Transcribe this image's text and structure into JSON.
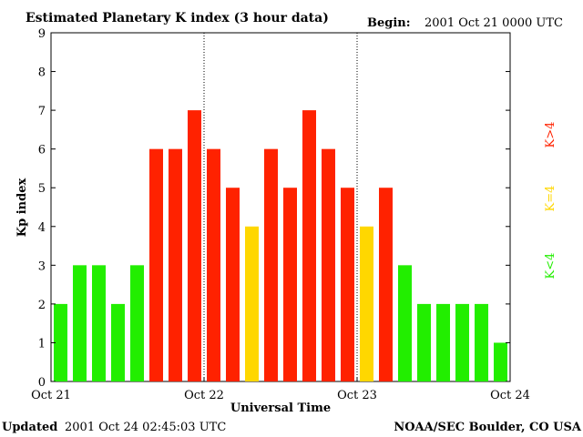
{
  "header": {
    "title": "Estimated Planetary K index (3 hour data)",
    "begin_label": "Begin:",
    "begin_value": "2001 Oct 21 0000 UTC"
  },
  "footer": {
    "updated_label": "Updated",
    "updated_value": "2001 Oct 24 02:45:03 UTC",
    "source": "NOAA/SEC Boulder, CO USA"
  },
  "legend": {
    "low": "K<4",
    "mid": "K=4",
    "high": "K>4"
  },
  "colors": {
    "low": "#22ee00",
    "mid": "#ffd700",
    "high": "#ff2200"
  },
  "chart_data": {
    "type": "bar",
    "title": "Estimated Planetary K index (3 hour data)",
    "xlabel": "Universal Time",
    "ylabel": "Kp index",
    "ylim": [
      0,
      9
    ],
    "yticks": [
      "0",
      "1",
      "2",
      "3",
      "4",
      "5",
      "6",
      "7",
      "8",
      "9"
    ],
    "xticks": [
      "Oct 21",
      "Oct 22",
      "Oct 23",
      "Oct 24"
    ],
    "interval": "3 hour",
    "values": [
      2,
      3,
      3,
      2,
      3,
      6,
      6,
      7,
      6,
      5,
      4,
      6,
      5,
      7,
      6,
      5,
      4,
      5,
      3,
      2,
      2,
      2,
      2,
      1
    ],
    "grid": "vertical dotted day separators",
    "legend_placement": "right"
  }
}
